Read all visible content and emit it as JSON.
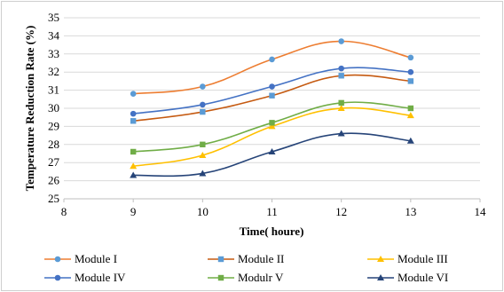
{
  "chart_data": {
    "type": "line",
    "title": "",
    "xlabel": "Time( houre)",
    "ylabel": "Temperature Reduction Rate (%)",
    "xlim": [
      8,
      14
    ],
    "ylim": [
      25,
      35
    ],
    "xticks": [
      8,
      9,
      10,
      11,
      12,
      13,
      14
    ],
    "yticks": [
      25,
      26,
      27,
      28,
      29,
      30,
      31,
      32,
      33,
      34,
      35
    ],
    "grid": true,
    "legend_position": "bottom",
    "x": [
      9,
      10,
      11,
      12,
      13
    ],
    "series": [
      {
        "name": "Module I",
        "values": [
          30.8,
          31.2,
          32.7,
          33.7,
          32.8
        ],
        "color": "#ED7D31",
        "marker_color": "#5B9BD5",
        "marker": "circle"
      },
      {
        "name": "Module II",
        "values": [
          29.3,
          29.8,
          30.7,
          31.8,
          31.5
        ],
        "color": "#C55A11",
        "marker_color": "#5B9BD5",
        "marker": "square"
      },
      {
        "name": "Module III",
        "values": [
          26.8,
          27.4,
          29.0,
          30.0,
          29.6
        ],
        "color": "#FFC000",
        "marker_color": "#FFC000",
        "marker": "triangle"
      },
      {
        "name": "Module IV",
        "values": [
          29.7,
          30.2,
          31.2,
          32.2,
          32.0
        ],
        "color": "#4472C4",
        "marker_color": "#4472C4",
        "marker": "circle"
      },
      {
        "name": "Modulr V",
        "values": [
          27.6,
          28.0,
          29.2,
          30.3,
          30.0
        ],
        "color": "#70AD47",
        "marker_color": "#70AD47",
        "marker": "square"
      },
      {
        "name": "Module VI",
        "values": [
          26.3,
          26.4,
          27.6,
          28.6,
          28.2
        ],
        "color": "#264478",
        "marker_color": "#264478",
        "marker": "triangle"
      }
    ]
  }
}
